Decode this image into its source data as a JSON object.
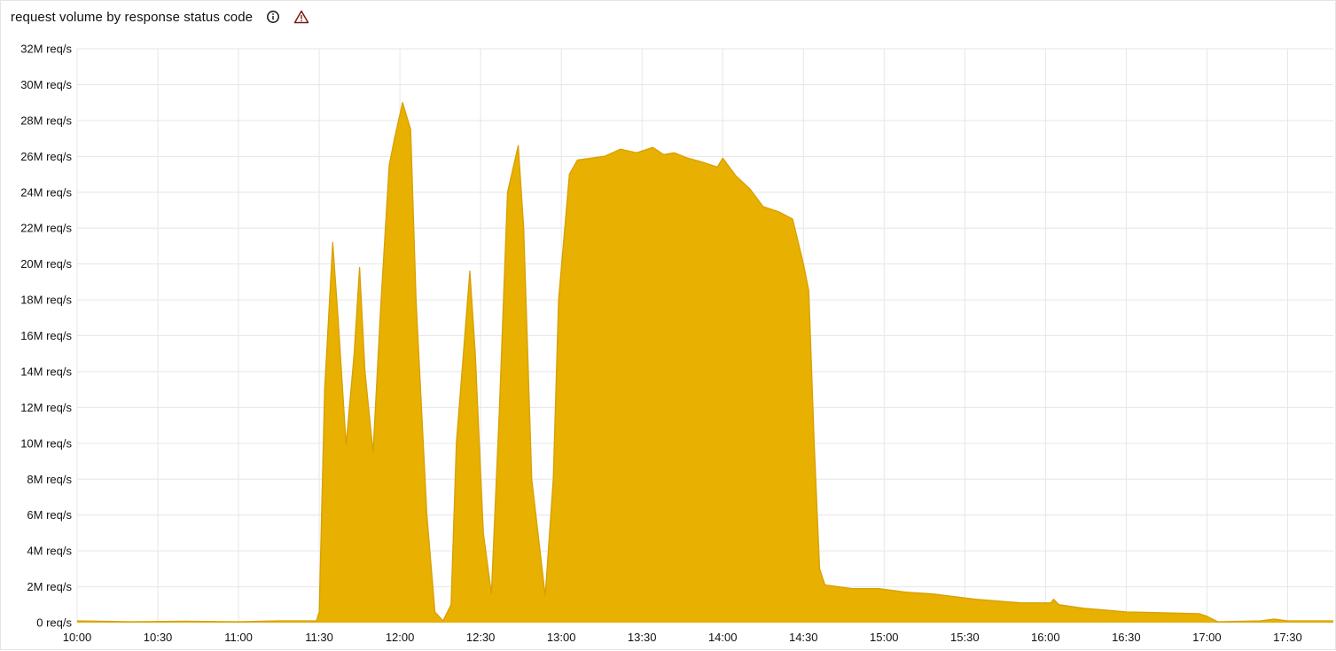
{
  "panel": {
    "title": "request volume by response status code",
    "icons": [
      "info-icon",
      "warning-icon"
    ]
  },
  "chart_data": {
    "type": "area",
    "title": "request volume by response status code",
    "xlabel": "",
    "ylabel": "",
    "unit": "req/s",
    "x_ticks": [
      "10:00",
      "10:30",
      "11:00",
      "11:30",
      "12:00",
      "12:30",
      "13:00",
      "13:30",
      "14:00",
      "14:30",
      "15:00",
      "15:30",
      "16:00",
      "16:30",
      "17:00",
      "17:30"
    ],
    "y_ticks": [
      "0 req/s",
      "2M req/s",
      "4M req/s",
      "6M req/s",
      "8M req/s",
      "10M req/s",
      "12M req/s",
      "14M req/s",
      "16M req/s",
      "18M req/s",
      "20M req/s",
      "22M req/s",
      "24M req/s",
      "26M req/s",
      "28M req/s",
      "30M req/s",
      "32M req/s"
    ],
    "xlim": [
      "10:00",
      "17:47"
    ],
    "ylim": [
      0,
      32
    ],
    "y_units": "M req/s",
    "grid": true,
    "colors": {
      "fill": "#E8B000",
      "line": "#D6A000",
      "grid": "#e6e6e6"
    },
    "series": [
      {
        "points": [
          [
            "10:00",
            0.1
          ],
          [
            "10:20",
            0.05
          ],
          [
            "10:40",
            0.08
          ],
          [
            "11:00",
            0.05
          ],
          [
            "11:15",
            0.1
          ],
          [
            "11:29",
            0.1
          ],
          [
            "11:30",
            0.6
          ],
          [
            "11:32",
            13
          ],
          [
            "11:35",
            21.2
          ],
          [
            "11:37",
            17
          ],
          [
            "11:40",
            9.9
          ],
          [
            "11:43",
            15
          ],
          [
            "11:45",
            19.8
          ],
          [
            "11:47",
            14
          ],
          [
            "11:50",
            9.5
          ],
          [
            "11:53",
            18
          ],
          [
            "11:56",
            25.5
          ],
          [
            "11:58",
            27
          ],
          [
            "12:01",
            29
          ],
          [
            "12:04",
            27.5
          ],
          [
            "12:06",
            18
          ],
          [
            "12:10",
            6
          ],
          [
            "12:13",
            0.6
          ],
          [
            "12:16",
            0.1
          ],
          [
            "12:19",
            1
          ],
          [
            "12:21",
            10
          ],
          [
            "12:26",
            19.6
          ],
          [
            "12:28",
            15
          ],
          [
            "12:31",
            5
          ],
          [
            "12:34",
            1.6
          ],
          [
            "12:37",
            12
          ],
          [
            "12:40",
            24
          ],
          [
            "12:44",
            26.6
          ],
          [
            "12:46",
            22
          ],
          [
            "12:49",
            8
          ],
          [
            "12:54",
            1.5
          ],
          [
            "12:57",
            8
          ],
          [
            "12:59",
            18
          ],
          [
            "13:03",
            25
          ],
          [
            "13:06",
            25.8
          ],
          [
            "13:16",
            26
          ],
          [
            "13:22",
            26.4
          ],
          [
            "13:28",
            26.2
          ],
          [
            "13:34",
            26.5
          ],
          [
            "13:38",
            26.1
          ],
          [
            "13:42",
            26.2
          ],
          [
            "13:47",
            25.9
          ],
          [
            "13:52",
            25.7
          ],
          [
            "13:58",
            25.4
          ],
          [
            "14:00",
            25.9
          ],
          [
            "14:05",
            24.9
          ],
          [
            "14:10",
            24.2
          ],
          [
            "14:15",
            23.2
          ],
          [
            "14:21",
            22.9
          ],
          [
            "14:26",
            22.5
          ],
          [
            "14:30",
            20
          ],
          [
            "14:32",
            18.5
          ],
          [
            "14:34",
            10
          ],
          [
            "14:36",
            3
          ],
          [
            "14:38",
            2.1
          ],
          [
            "14:48",
            1.9
          ],
          [
            "14:58",
            1.9
          ],
          [
            "15:08",
            1.7
          ],
          [
            "15:18",
            1.6
          ],
          [
            "15:34",
            1.3
          ],
          [
            "15:51",
            1.1
          ],
          [
            "16:02",
            1.1
          ],
          [
            "16:03",
            1.3
          ],
          [
            "16:05",
            1.0
          ],
          [
            "16:14",
            0.8
          ],
          [
            "16:30",
            0.6
          ],
          [
            "16:57",
            0.5
          ],
          [
            "17:00",
            0.35
          ],
          [
            "17:04",
            0.05
          ],
          [
            "17:20",
            0.1
          ],
          [
            "17:25",
            0.2
          ],
          [
            "17:30",
            0.1
          ],
          [
            "17:47",
            0.1
          ]
        ]
      }
    ]
  }
}
